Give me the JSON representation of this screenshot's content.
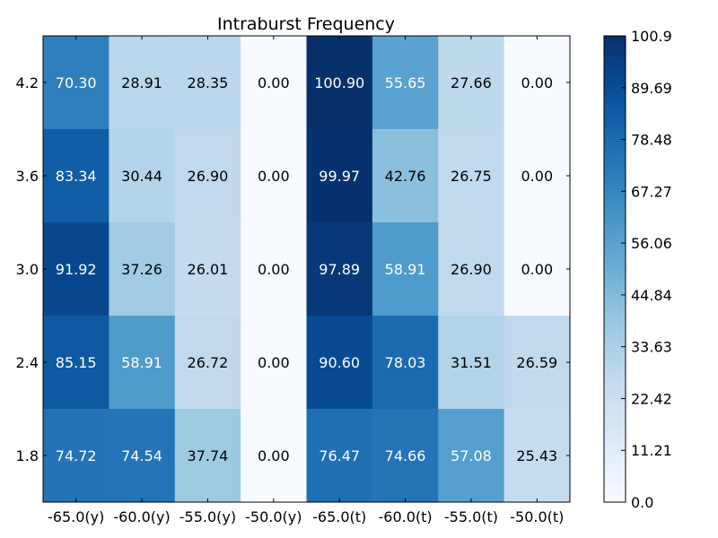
{
  "chart_data": {
    "type": "heatmap",
    "title": "Intraburst Frequency",
    "xlabel": "",
    "ylabel": "",
    "x_categories": [
      "-65.0(y)",
      "-60.0(y)",
      "-55.0(y)",
      "-50.0(y)",
      "-65.0(t)",
      "-60.0(t)",
      "-55.0(t)",
      "-50.0(t)"
    ],
    "y_categories": [
      "4.2",
      "3.6",
      "3.0",
      "2.4",
      "1.8"
    ],
    "values": [
      [
        70.3,
        28.91,
        28.35,
        0.0,
        100.9,
        55.65,
        27.66,
        0.0
      ],
      [
        83.34,
        30.44,
        26.9,
        0.0,
        99.97,
        42.76,
        26.75,
        0.0
      ],
      [
        91.92,
        37.26,
        26.01,
        0.0,
        97.89,
        58.91,
        26.9,
        0.0
      ],
      [
        85.15,
        58.91,
        26.72,
        0.0,
        90.6,
        78.03,
        31.51,
        26.59
      ],
      [
        74.72,
        74.54,
        37.74,
        0.0,
        76.47,
        74.66,
        57.08,
        25.43
      ]
    ],
    "value_labels": [
      [
        "70.30",
        "28.91",
        "28.35",
        "0.00",
        "100.90",
        "55.65",
        "27.66",
        "0.00"
      ],
      [
        "83.34",
        "30.44",
        "26.90",
        "0.00",
        "99.97",
        "42.76",
        "26.75",
        "0.00"
      ],
      [
        "91.92",
        "37.26",
        "26.01",
        "0.00",
        "97.89",
        "58.91",
        "26.90",
        "0.00"
      ],
      [
        "85.15",
        "58.91",
        "26.72",
        "0.00",
        "90.60",
        "78.03",
        "31.51",
        "26.59"
      ],
      [
        "74.72",
        "74.54",
        "37.74",
        "0.00",
        "76.47",
        "74.66",
        "57.08",
        "25.43"
      ]
    ],
    "colormap": "Blues",
    "vmin": 0.0,
    "vmax": 100.9,
    "colorbar_ticks": [
      0.0,
      11.21,
      22.42,
      33.63,
      44.84,
      56.06,
      67.27,
      78.48,
      89.69,
      100.9
    ],
    "colorbar_tick_labels": [
      "0.0",
      "11.21",
      "22.42",
      "33.63",
      "44.84",
      "56.06",
      "67.27",
      "78.48",
      "89.69",
      "100.9"
    ],
    "colorbar_placement": "right",
    "grid": false,
    "text_color_light": "#ffffff",
    "text_color_dark": "#000000"
  }
}
